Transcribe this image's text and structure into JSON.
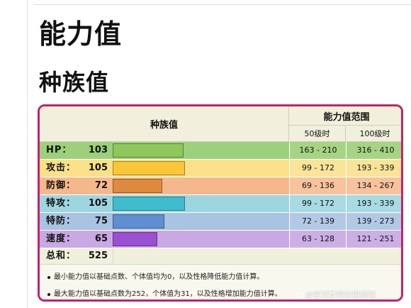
{
  "page": {
    "heading1": "能力值",
    "heading2": "种族值"
  },
  "table": {
    "header_base": "种族值",
    "header_range": "能力值范围",
    "header_lv50": "50级时",
    "header_lv100": "100级时",
    "max_base_scale": 255,
    "rows": [
      {
        "label": "HP：",
        "value": "103",
        "base": 103,
        "lv50": "163 - 210",
        "lv100": "316 - 410",
        "bg": "#9dd07a",
        "bar": "#8dc85a",
        "cell": "#a6d484"
      },
      {
        "label": "攻击：",
        "value": "105",
        "base": 105,
        "lv50": "99 - 172",
        "lv100": "193 - 339",
        "bg": "#fbe08a",
        "bar": "#f9c63a",
        "cell": "#fbe49a"
      },
      {
        "label": "防御：",
        "value": "72",
        "base": 72,
        "lv50": "69 - 136",
        "lv100": "134 - 267",
        "bg": "#f5b88c",
        "bar": "#dd8a3f",
        "cell": "#f6c39c"
      },
      {
        "label": "特攻：",
        "value": "105",
        "base": 105,
        "lv50": "99 - 172",
        "lv100": "193 - 339",
        "bg": "#9ed6e0",
        "bar": "#3fbccd",
        "cell": "#a8dae3"
      },
      {
        "label": "特防：",
        "value": "75",
        "base": 75,
        "lv50": "72 - 139",
        "lv100": "139 - 273",
        "bg": "#a9c3e3",
        "bar": "#5f8fd2",
        "cell": "#b2c9e6"
      },
      {
        "label": "速度：",
        "value": "65",
        "base": 65,
        "lv50": "63 - 128",
        "lv100": "121 - 251",
        "bg": "#c9a9e3",
        "bar": "#9b4fd3",
        "cell": "#ccb0e5"
      }
    ],
    "total_label": "总和：",
    "total_value": "525"
  },
  "notes": [
    "最小能力值以基础点数、个体值均为0，以及性格降低能力值计算。",
    "最大能力值以基础点数为252，个体值为31，以及性格增加能力值计算。"
  ],
  "watermark": {
    "text": "@宝可梦阿尔宙斯吧"
  }
}
